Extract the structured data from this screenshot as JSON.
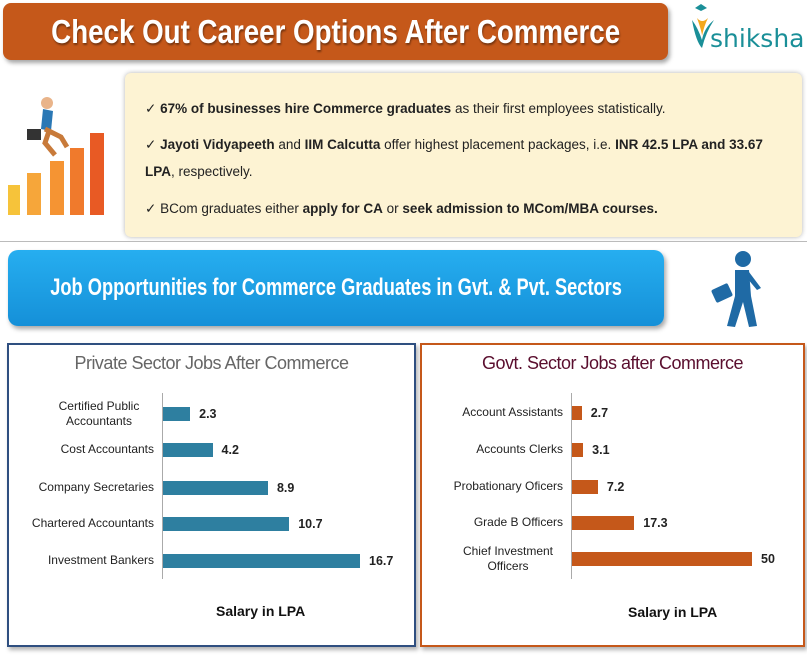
{
  "header": {
    "title": "Check Out Career Options After Commerce"
  },
  "logo": {
    "text": "shiksha",
    "color": "#1a8f98"
  },
  "highlights": [
    [
      {
        "t": "67% of businesses hire Commerce graduates",
        "b": true
      },
      {
        "t": " as their first employees statistically.",
        "b": false
      }
    ],
    [
      {
        "t": "Jayoti Vidyapeeth",
        "b": true
      },
      {
        "t": " and ",
        "b": false
      },
      {
        "t": "IIM Calcutta",
        "b": true
      },
      {
        "t": " offer highest placement packages, i.e. ",
        "b": false
      },
      {
        "t": "INR 42.5 LPA and 33.67 LPA",
        "b": true
      },
      {
        "t": ", respectively.",
        "b": false
      }
    ],
    [
      {
        "t": "BCom graduates either ",
        "b": false
      },
      {
        "t": "apply for CA",
        "b": true
      },
      {
        "t": " or ",
        "b": false
      },
      {
        "t": "seek admission to MCom/MBA courses.",
        "b": true
      }
    ]
  ],
  "banner": {
    "title": "Job Opportunities for Commerce Graduates in Gvt. & Pvt. Sectors"
  },
  "chart_data": [
    {
      "type": "bar",
      "orientation": "horizontal",
      "title": "Private Sector Jobs After Commerce",
      "xlabel": "Salary in LPA",
      "categories": [
        "Certified Public Accountants",
        "Cost Accountants",
        "Company Secretaries",
        "Chartered Accountants",
        "Investment Bankers"
      ],
      "values": [
        2.3,
        4.2,
        8.9,
        10.7,
        16.7
      ],
      "color": "#2e7fa0",
      "border_color": "#2f4f80",
      "title_color": "#666666",
      "grid": false
    },
    {
      "type": "bar",
      "orientation": "horizontal",
      "title": "Govt. Sector Jobs after Commerce",
      "xlabel": "Salary in LPA",
      "categories": [
        "Account Assistants",
        "Accounts Clerks",
        "Probationary Oficers",
        "Grade B Officers",
        "Chief Investment Officers"
      ],
      "values": [
        2.7,
        3.1,
        7.2,
        17.3,
        50
      ],
      "color": "#c5581a",
      "border_color": "#c5581a",
      "title_color": "#5a0e2e",
      "grid": false
    }
  ]
}
